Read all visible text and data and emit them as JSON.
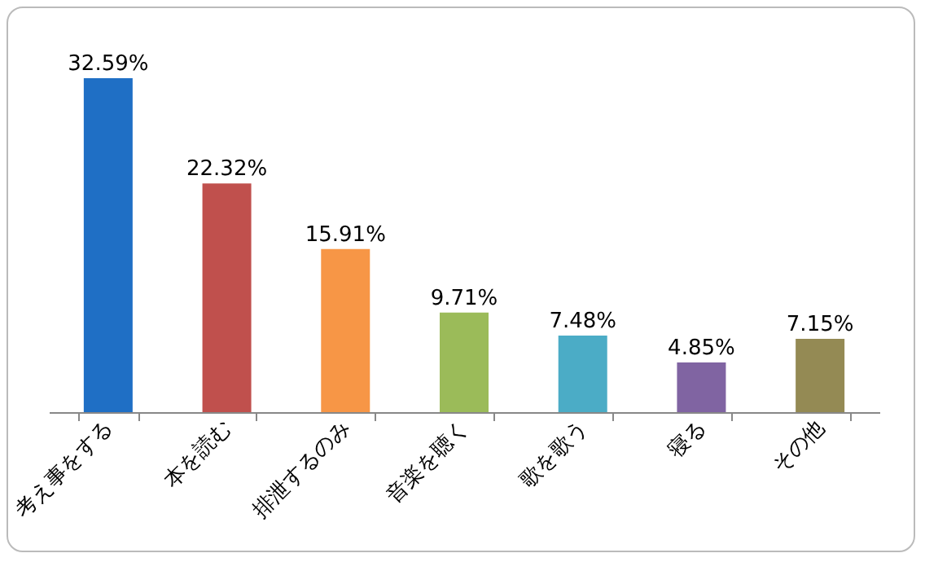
{
  "chart_data": {
    "type": "bar",
    "categories": [
      "考え事をする",
      "本を読む",
      "排泄するのみ",
      "音楽を聴く",
      "歌を歌う",
      "寝る",
      "その他"
    ],
    "values": [
      32.59,
      22.32,
      15.91,
      9.71,
      7.48,
      4.85,
      7.15
    ],
    "value_labels": [
      "32.59%",
      "22.32%",
      "15.91%",
      "9.71%",
      "7.48%",
      "4.85%",
      "7.15%"
    ],
    "colors": [
      "#1f6fc5",
      "#c0504d",
      "#f79646",
      "#9bbb59",
      "#4bacc6",
      "#8064a2",
      "#948a54"
    ]
  }
}
